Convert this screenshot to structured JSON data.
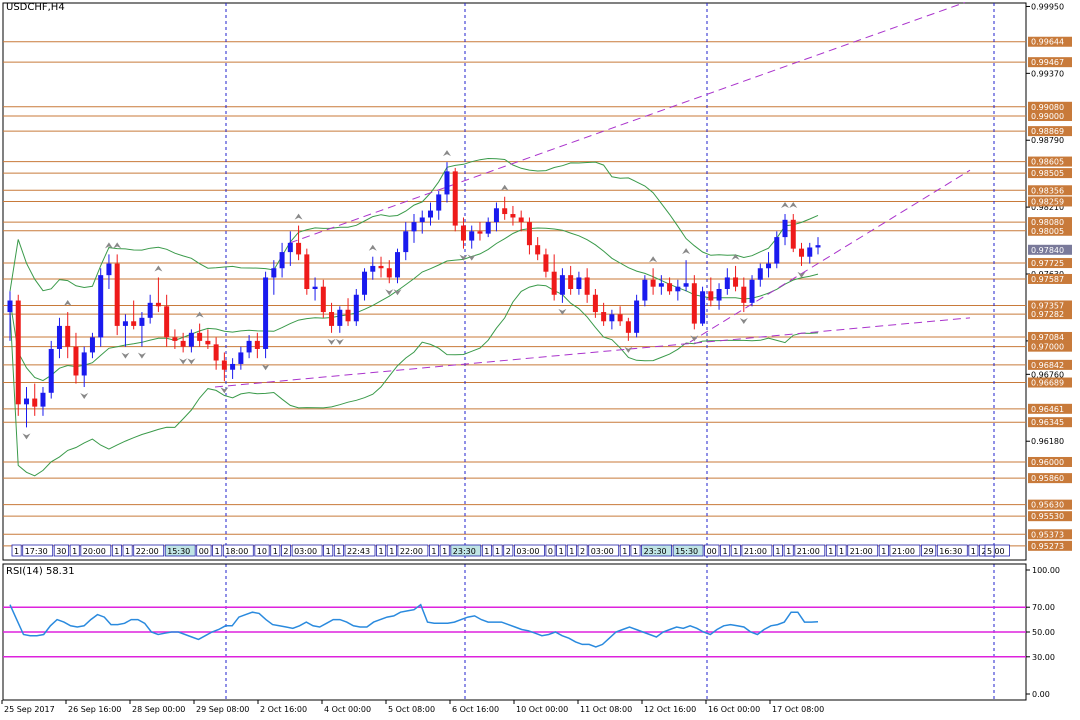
{
  "chart_data": {
    "type": "candlestick",
    "title": "USDCHF,H4",
    "symbol": "USDCHF",
    "timeframe": "H4",
    "price_axis": {
      "ylim": [
        0.9515,
        0.9998
      ],
      "ticks": [
        "0.99950",
        "0.99370",
        "0.98790",
        "0.98210",
        "0.97630",
        "0.97050",
        "0.96760",
        "0.96180"
      ]
    },
    "levels": [
      {
        "value": 0.99644,
        "label": "0.99644"
      },
      {
        "value": 0.99467,
        "label": "0.99467"
      },
      {
        "value": 0.9908,
        "label": "0.99080"
      },
      {
        "value": 0.99,
        "label": "0.99000"
      },
      {
        "value": 0.98869,
        "label": "0.98869"
      },
      {
        "value": 0.98605,
        "label": "0.98605"
      },
      {
        "value": 0.98505,
        "label": "0.98505"
      },
      {
        "value": 0.98356,
        "label": "0.98356"
      },
      {
        "value": 0.98259,
        "label": "0.98259"
      },
      {
        "value": 0.9808,
        "label": "0.98080"
      },
      {
        "value": 0.98005,
        "label": "0.98005"
      },
      {
        "value": 0.97725,
        "label": "0.97725"
      },
      {
        "value": 0.97587,
        "label": "0.97587"
      },
      {
        "value": 0.97357,
        "label": "0.97357"
      },
      {
        "value": 0.97282,
        "label": "0.97282"
      },
      {
        "value": 0.97084,
        "label": "0.97084"
      },
      {
        "value": 0.97,
        "label": "0.97000"
      },
      {
        "value": 0.96842,
        "label": "0.96842"
      },
      {
        "value": 0.96689,
        "label": "0.96689"
      },
      {
        "value": 0.96461,
        "label": "0.96461"
      },
      {
        "value": 0.96345,
        "label": "0.96345"
      },
      {
        "value": 0.96,
        "label": "0.96000"
      },
      {
        "value": 0.9586,
        "label": "0.95860"
      },
      {
        "value": 0.9563,
        "label": "0.95630"
      },
      {
        "value": 0.9553,
        "label": "0.95530"
      },
      {
        "value": 0.95373,
        "label": "0.95373"
      },
      {
        "value": 0.95273,
        "label": "0.95273"
      }
    ],
    "current_price": {
      "value": 0.9784,
      "label": "0.97840"
    },
    "level_color": "#c87a3a",
    "candles_ohlc": [
      [
        0.973,
        0.9748,
        0.9705,
        0.974
      ],
      [
        0.974,
        0.9745,
        0.964,
        0.965
      ],
      [
        0.965,
        0.9665,
        0.963,
        0.9655
      ],
      [
        0.9655,
        0.9668,
        0.964,
        0.9648
      ],
      [
        0.9648,
        0.9665,
        0.964,
        0.966
      ],
      [
        0.966,
        0.9705,
        0.9655,
        0.9698
      ],
      [
        0.9698,
        0.9725,
        0.969,
        0.9718
      ],
      [
        0.9718,
        0.973,
        0.969,
        0.97
      ],
      [
        0.97,
        0.9712,
        0.9668,
        0.9675
      ],
      [
        0.9675,
        0.97,
        0.9665,
        0.9695
      ],
      [
        0.9695,
        0.9712,
        0.969,
        0.9708
      ],
      [
        0.9708,
        0.9768,
        0.97,
        0.9762
      ],
      [
        0.9762,
        0.978,
        0.975,
        0.9772
      ],
      [
        0.9772,
        0.978,
        0.971,
        0.9718
      ],
      [
        0.9718,
        0.9728,
        0.97,
        0.9722
      ],
      [
        0.9722,
        0.974,
        0.9715,
        0.9718
      ],
      [
        0.9718,
        0.973,
        0.97,
        0.9725
      ],
      [
        0.9725,
        0.9745,
        0.972,
        0.9738
      ],
      [
        0.9738,
        0.976,
        0.973,
        0.9735
      ],
      [
        0.9735,
        0.9745,
        0.97,
        0.9708
      ],
      [
        0.9708,
        0.9715,
        0.9698,
        0.9705
      ],
      [
        0.9705,
        0.9712,
        0.9695,
        0.97
      ],
      [
        0.97,
        0.9715,
        0.9695,
        0.9712
      ],
      [
        0.9712,
        0.972,
        0.97,
        0.9705
      ],
      [
        0.9705,
        0.9715,
        0.9698,
        0.9702
      ],
      [
        0.9702,
        0.9708,
        0.968,
        0.9688
      ],
      [
        0.9688,
        0.9695,
        0.967,
        0.968
      ],
      [
        0.968,
        0.969,
        0.9672,
        0.9685
      ],
      [
        0.9685,
        0.97,
        0.968,
        0.9695
      ],
      [
        0.9695,
        0.971,
        0.969,
        0.9705
      ],
      [
        0.9705,
        0.9712,
        0.969,
        0.9698
      ],
      [
        0.9698,
        0.9765,
        0.969,
        0.976
      ],
      [
        0.976,
        0.9775,
        0.9745,
        0.9768
      ],
      [
        0.9768,
        0.979,
        0.976,
        0.9782
      ],
      [
        0.9782,
        0.98,
        0.977,
        0.979
      ],
      [
        0.979,
        0.9805,
        0.9775,
        0.978
      ],
      [
        0.978,
        0.9785,
        0.9745,
        0.975
      ],
      [
        0.975,
        0.976,
        0.974,
        0.9752
      ],
      [
        0.9752,
        0.9758,
        0.9725,
        0.973
      ],
      [
        0.973,
        0.9738,
        0.9712,
        0.9718
      ],
      [
        0.9718,
        0.9735,
        0.9712,
        0.9732
      ],
      [
        0.9732,
        0.9742,
        0.9718,
        0.9722
      ],
      [
        0.9722,
        0.975,
        0.9718,
        0.9745
      ],
      [
        0.9745,
        0.9768,
        0.974,
        0.9765
      ],
      [
        0.9765,
        0.9778,
        0.9758,
        0.977
      ],
      [
        0.977,
        0.9778,
        0.976,
        0.9768
      ],
      [
        0.9768,
        0.9775,
        0.9755,
        0.976
      ],
      [
        0.976,
        0.9785,
        0.9755,
        0.9782
      ],
      [
        0.9782,
        0.9808,
        0.9775,
        0.98
      ],
      [
        0.98,
        0.9815,
        0.979,
        0.9808
      ],
      [
        0.9808,
        0.9818,
        0.9798,
        0.9812
      ],
      [
        0.9812,
        0.9825,
        0.9805,
        0.9818
      ],
      [
        0.9818,
        0.9835,
        0.981,
        0.9832
      ],
      [
        0.9832,
        0.986,
        0.9825,
        0.9852
      ],
      [
        0.9852,
        0.9855,
        0.98,
        0.9805
      ],
      [
        0.9805,
        0.9812,
        0.9785,
        0.9792
      ],
      [
        0.9792,
        0.9805,
        0.9785,
        0.98
      ],
      [
        0.98,
        0.9808,
        0.9792,
        0.9798
      ],
      [
        0.9798,
        0.9812,
        0.9795,
        0.9808
      ],
      [
        0.9808,
        0.9825,
        0.98,
        0.982
      ],
      [
        0.982,
        0.983,
        0.981,
        0.9815
      ],
      [
        0.9815,
        0.9822,
        0.9805,
        0.9812
      ],
      [
        0.9812,
        0.9818,
        0.98,
        0.9808
      ],
      [
        0.9808,
        0.9812,
        0.978,
        0.9788
      ],
      [
        0.9788,
        0.9795,
        0.9775,
        0.978
      ],
      [
        0.978,
        0.9785,
        0.976,
        0.9765
      ],
      [
        0.9765,
        0.978,
        0.974,
        0.9745
      ],
      [
        0.9745,
        0.9768,
        0.9738,
        0.9762
      ],
      [
        0.9762,
        0.977,
        0.9745,
        0.975
      ],
      [
        0.975,
        0.9765,
        0.9745,
        0.976
      ],
      [
        0.976,
        0.9768,
        0.9738,
        0.9745
      ],
      [
        0.9745,
        0.975,
        0.9725,
        0.973
      ],
      [
        0.973,
        0.9738,
        0.9718,
        0.9722
      ],
      [
        0.9722,
        0.9732,
        0.9715,
        0.9728
      ],
      [
        0.9728,
        0.9735,
        0.9718,
        0.9722
      ],
      [
        0.9722,
        0.9725,
        0.9705,
        0.9712
      ],
      [
        0.9712,
        0.9745,
        0.9708,
        0.974
      ],
      [
        0.974,
        0.9762,
        0.9735,
        0.9758
      ],
      [
        0.9758,
        0.9768,
        0.9745,
        0.9752
      ],
      [
        0.9752,
        0.9762,
        0.9745,
        0.9755
      ],
      [
        0.9755,
        0.976,
        0.9745,
        0.9748
      ],
      [
        0.9748,
        0.9758,
        0.974,
        0.9752
      ],
      [
        0.9752,
        0.9775,
        0.9748,
        0.9755
      ],
      [
        0.9755,
        0.9762,
        0.9715,
        0.972
      ],
      [
        0.972,
        0.9752,
        0.9718,
        0.9748
      ],
      [
        0.9748,
        0.976,
        0.9735,
        0.974
      ],
      [
        0.974,
        0.9755,
        0.9732,
        0.975
      ],
      [
        0.975,
        0.9768,
        0.9745,
        0.976
      ],
      [
        0.976,
        0.977,
        0.9748,
        0.9752
      ],
      [
        0.9752,
        0.976,
        0.973,
        0.9738
      ],
      [
        0.9738,
        0.9762,
        0.9735,
        0.9758
      ],
      [
        0.9758,
        0.9772,
        0.9752,
        0.9768
      ],
      [
        0.9768,
        0.9782,
        0.976,
        0.9772
      ],
      [
        0.9772,
        0.98,
        0.9768,
        0.9795
      ],
      [
        0.9795,
        0.9815,
        0.9788,
        0.981
      ],
      [
        0.981,
        0.9815,
        0.9782,
        0.9785
      ],
      [
        0.9785,
        0.979,
        0.977,
        0.9778
      ],
      [
        0.9778,
        0.979,
        0.9772,
        0.9786
      ],
      [
        0.9786,
        0.9795,
        0.978,
        0.9788
      ]
    ],
    "trendlines": "dashed purple channel lines",
    "bollinger_bands": "green",
    "x_axis": {
      "labels": [
        "25 Sep 2017",
        "26 Sep 16:00",
        "28 Sep 00:00",
        "29 Sep 08:00",
        "2 Oct 16:00",
        "4 Oct 00:00",
        "5 Oct 08:00",
        "6 Oct 16:00",
        "10 Oct 00:00",
        "11 Oct 08:00",
        "12 Oct 16:00",
        "16 Oct 00:00",
        "17 Oct 08:00"
      ],
      "session_boxes": [
        "1",
        "17:30",
        "30",
        "1",
        "20:00",
        "1",
        "1",
        "22:00",
        "15:30",
        "00",
        "1",
        "18:00",
        "10",
        "1",
        "2",
        "03:00",
        "1",
        "1",
        "22:43",
        "1",
        "1",
        "22:00",
        "1",
        "1",
        "23:30",
        "1",
        "1",
        "2",
        "03:00",
        "0",
        "1",
        "1",
        "2",
        "03:00",
        "1",
        "1",
        "23:30",
        "15:30",
        "00",
        "1",
        "1",
        "21:00",
        "1",
        "1",
        "21:00",
        "1",
        "1",
        "21:00",
        "1",
        "21:00",
        "29",
        "16:30",
        "1",
        "21:00",
        "5"
      ]
    },
    "rsi": {
      "label": "RSI(14) 58.31",
      "period": 14,
      "value": 58.31,
      "ylim": [
        0,
        100
      ],
      "ticks": [
        "100.00",
        "70.00",
        "50.00",
        "30.00",
        "0.00"
      ],
      "levels": [
        70,
        50,
        30
      ],
      "values": [
        72,
        60,
        48,
        47,
        47,
        48,
        55,
        60,
        58,
        55,
        54,
        55,
        60,
        64,
        62,
        56,
        56,
        57,
        60,
        60,
        57,
        50,
        48,
        49,
        50,
        50,
        48,
        46,
        44,
        47,
        50,
        52,
        55,
        55,
        62,
        64,
        66,
        65,
        60,
        56,
        55,
        54,
        53,
        55,
        58,
        55,
        54,
        57,
        60,
        60,
        58,
        55,
        54,
        54,
        58,
        60,
        62,
        63,
        66,
        67,
        68,
        72,
        58,
        57,
        57,
        57,
        58,
        60,
        62,
        63,
        60,
        58,
        58,
        58,
        56,
        54,
        52,
        51,
        49,
        47,
        48,
        50,
        47,
        45,
        42,
        40,
        40,
        38,
        40,
        45,
        50,
        52,
        54,
        52,
        50,
        48,
        46,
        50,
        52,
        54,
        53,
        55,
        53,
        50,
        48,
        52,
        55,
        56,
        55,
        54,
        50,
        48,
        52,
        55,
        56,
        58,
        66,
        66,
        58,
        58,
        58.31
      ]
    }
  }
}
